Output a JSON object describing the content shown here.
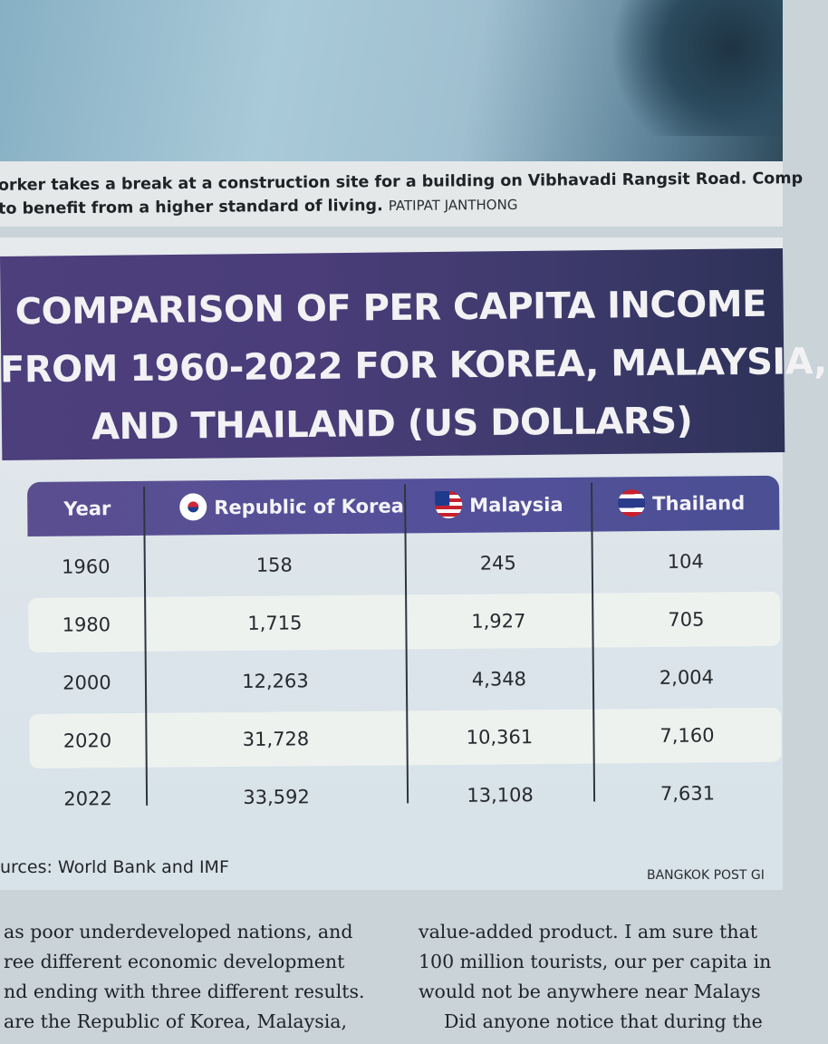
{
  "caption": {
    "line1": "orker takes a break at a construction site for a building on Vibhavadi Rangsit Road. Comp",
    "line2": "to benefit from a higher standard of living.",
    "credit": "PATIPAT JANTHONG"
  },
  "infographic": {
    "title_lines": [
      "COMPARISON OF PER CAPITA INCOME",
      "FROM 1960-2022 FOR KOREA, MALAYSIA,",
      "AND THAILAND (US DOLLARS)"
    ],
    "columns": [
      "Year",
      "Republic of Korea",
      "Malaysia",
      "Thailand"
    ],
    "flag_icons": [
      "south-korea-flag-icon",
      "malaysia-flag-icon",
      "thailand-flag-icon"
    ],
    "rows": [
      [
        "1960",
        "158",
        "245",
        "104"
      ],
      [
        "1980",
        "1,715",
        "1,927",
        "705"
      ],
      [
        "2000",
        "12,263",
        "4,348",
        "2,004"
      ],
      [
        "2020",
        "31,728",
        "10,361",
        "7,160"
      ],
      [
        "2022",
        "33,592",
        "13,108",
        "7,631"
      ]
    ],
    "sources": "urces:  World Bank and IMF",
    "publisher": "BANGKOK POST GI"
  },
  "article": {
    "left_lines": [
      "as poor underdeveloped nations, and",
      "ree different economic development",
      "nd ending with three different results.",
      "are the Republic of Korea, Malaysia,"
    ],
    "right_lines": [
      "value-added product. I am sure that",
      "100 million tourists, our per capita in",
      "would not be anywhere near Malays",
      "Did anyone notice that during the"
    ]
  },
  "colors": {
    "title_band": "#4c3f7c",
    "header_band": "#55509a",
    "row_light": "#eef2ef"
  }
}
